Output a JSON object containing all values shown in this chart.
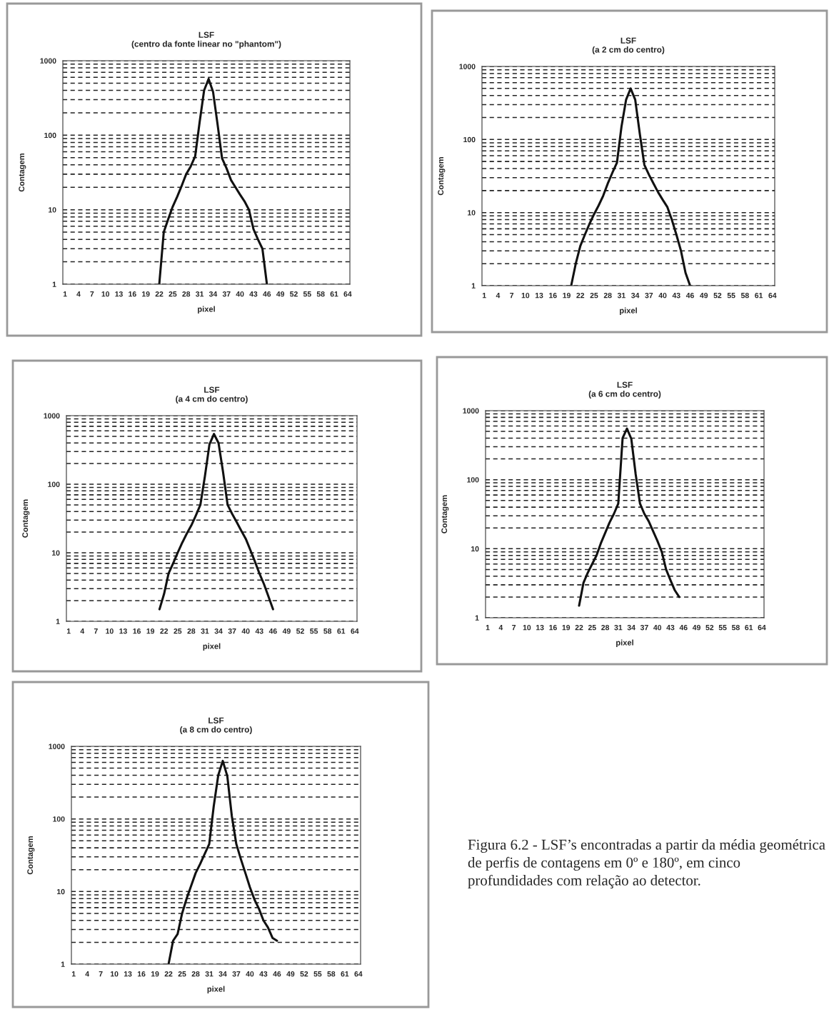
{
  "chart_data": [
    {
      "type": "line",
      "title": "LSF",
      "subtitle": "(centro da fonte linear no \"phantom\")",
      "xlabel": "pixel",
      "ylabel": "Contagem",
      "log": true,
      "grid": "y",
      "legend": false,
      "marker": "none",
      "line_style": "solid",
      "ylim": [
        1,
        1000
      ],
      "yticks": [
        1,
        10,
        100,
        1000
      ],
      "categories": [
        "1",
        null,
        null,
        "4",
        null,
        null,
        "7",
        null,
        null,
        "10",
        null,
        null,
        "13",
        null,
        null,
        "16",
        null,
        null,
        "19",
        null,
        null,
        "22",
        null,
        null,
        "25",
        null,
        null,
        "28",
        null,
        null,
        "31",
        null,
        null,
        "34",
        null,
        null,
        "37",
        null,
        null,
        "40",
        null,
        null,
        "43",
        null,
        null,
        "46",
        null,
        null,
        "49",
        null,
        null,
        "52",
        null,
        null,
        "55",
        null,
        null,
        "58",
        null,
        null,
        "61",
        null,
        null,
        "64"
      ],
      "series": [
        {
          "color": "#111111",
          "values": [
            null,
            null,
            null,
            null,
            null,
            null,
            null,
            null,
            null,
            null,
            null,
            null,
            null,
            null,
            null,
            null,
            null,
            null,
            null,
            null,
            null,
            1,
            5,
            7.5,
            11,
            15,
            21,
            30,
            38,
            52,
            150,
            400,
            570,
            380,
            140,
            49,
            36,
            25,
            20,
            16,
            13,
            10,
            5.5,
            4,
            3,
            1,
            null,
            null,
            null,
            null,
            null,
            null,
            null,
            null,
            null,
            null,
            null,
            null,
            null,
            null,
            null,
            null,
            null,
            null
          ]
        }
      ]
    },
    {
      "type": "line",
      "title": "LSF",
      "subtitle": "(a 2 cm do centro)",
      "xlabel": "pixel",
      "ylabel": "Contagem",
      "log": true,
      "grid": "y",
      "legend": false,
      "marker": "none",
      "line_style": "solid",
      "ylim": [
        1,
        1000
      ],
      "yticks": [
        1,
        10,
        100,
        1000
      ],
      "categories": [
        "1",
        null,
        null,
        "4",
        null,
        null,
        "7",
        null,
        null,
        "10",
        null,
        null,
        "13",
        null,
        null,
        "16",
        null,
        null,
        "19",
        null,
        null,
        "22",
        null,
        null,
        "25",
        null,
        null,
        "28",
        null,
        null,
        "31",
        null,
        null,
        "34",
        null,
        null,
        "37",
        null,
        null,
        "40",
        null,
        null,
        "43",
        null,
        null,
        "46",
        null,
        null,
        "49",
        null,
        null,
        "52",
        null,
        null,
        "55",
        null,
        null,
        "58",
        null,
        null,
        "61",
        null,
        null,
        "64"
      ],
      "series": [
        {
          "color": "#111111",
          "values": [
            null,
            null,
            null,
            null,
            null,
            null,
            null,
            null,
            null,
            null,
            null,
            null,
            null,
            null,
            null,
            null,
            null,
            null,
            null,
            1,
            2,
            3.5,
            5,
            7,
            9.5,
            12.5,
            17,
            25,
            35,
            48,
            150,
            350,
            500,
            350,
            120,
            45,
            33,
            25,
            19,
            15,
            12,
            8,
            5,
            3,
            1.5,
            1,
            null,
            null,
            null,
            null,
            null,
            null,
            null,
            null,
            null,
            null,
            null,
            null,
            null,
            null,
            null,
            null,
            null,
            null
          ]
        }
      ]
    },
    {
      "type": "line",
      "title": "LSF",
      "subtitle": "(a 4 cm do centro)",
      "xlabel": "pixel",
      "ylabel": "Contagem",
      "log": true,
      "grid": "y",
      "legend": false,
      "marker": "none",
      "line_style": "solid",
      "ylim": [
        1,
        1000
      ],
      "yticks": [
        1,
        10,
        100,
        1000
      ],
      "categories": [
        "1",
        null,
        null,
        "4",
        null,
        null,
        "7",
        null,
        null,
        "10",
        null,
        null,
        "13",
        null,
        null,
        "16",
        null,
        null,
        "19",
        null,
        null,
        "22",
        null,
        null,
        "25",
        null,
        null,
        "28",
        null,
        null,
        "31",
        null,
        null,
        "34",
        null,
        null,
        "37",
        null,
        null,
        "40",
        null,
        null,
        "43",
        null,
        null,
        "46",
        null,
        null,
        "49",
        null,
        null,
        "52",
        null,
        null,
        "55",
        null,
        null,
        "58",
        null,
        null,
        "61",
        null,
        null,
        "64"
      ],
      "series": [
        {
          "color": "#111111",
          "values": [
            null,
            null,
            null,
            null,
            null,
            null,
            null,
            null,
            null,
            null,
            null,
            null,
            null,
            null,
            null,
            null,
            null,
            null,
            null,
            null,
            1.5,
            2.5,
            5,
            7,
            10,
            14,
            19,
            25,
            35,
            50,
            130,
            380,
            540,
            400,
            150,
            50,
            37,
            28,
            21,
            16,
            11,
            7.5,
            5,
            3.5,
            2.3,
            1.5,
            null,
            null,
            null,
            null,
            null,
            null,
            null,
            null,
            null,
            null,
            null,
            null,
            null,
            null,
            null,
            null,
            null,
            null
          ]
        }
      ]
    },
    {
      "type": "line",
      "title": "LSF",
      "subtitle": "(a 6 cm do centro)",
      "xlabel": "pixel",
      "ylabel": "Contagem",
      "log": true,
      "grid": "y",
      "legend": false,
      "marker": "none",
      "line_style": "solid",
      "ylim": [
        1,
        1000
      ],
      "yticks": [
        1,
        10,
        100,
        1000
      ],
      "categories": [
        "1",
        null,
        null,
        "4",
        null,
        null,
        "7",
        null,
        null,
        "10",
        null,
        null,
        "13",
        null,
        null,
        "16",
        null,
        null,
        "19",
        null,
        null,
        "22",
        null,
        null,
        "25",
        null,
        null,
        "28",
        null,
        null,
        "31",
        null,
        null,
        "34",
        null,
        null,
        "37",
        null,
        null,
        "40",
        null,
        null,
        "43",
        null,
        null,
        "46",
        null,
        null,
        "49",
        null,
        null,
        "52",
        null,
        null,
        "55",
        null,
        null,
        "58",
        null,
        null,
        "61",
        null,
        null,
        "64"
      ],
      "series": [
        {
          "color": "#111111",
          "values": [
            null,
            null,
            null,
            null,
            null,
            null,
            null,
            null,
            null,
            null,
            null,
            null,
            null,
            null,
            null,
            null,
            null,
            null,
            null,
            null,
            null,
            1.5,
            3.2,
            4.5,
            6,
            8,
            12,
            17,
            24,
            32,
            45,
            400,
            550,
            390,
            120,
            45,
            32,
            25,
            18,
            13,
            9,
            5,
            3.5,
            2.5,
            2,
            null,
            null,
            null,
            null,
            null,
            null,
            null,
            null,
            null,
            null,
            null,
            null,
            null,
            null,
            null,
            null,
            null,
            null,
            null
          ]
        }
      ]
    },
    {
      "type": "line",
      "title": "LSF",
      "subtitle": "(a 8 cm do centro)",
      "xlabel": "pixel",
      "ylabel": "Contagem",
      "log": true,
      "grid": "y",
      "legend": false,
      "marker": "none",
      "line_style": "solid",
      "ylim": [
        1,
        1000
      ],
      "yticks": [
        1,
        10,
        100,
        1000
      ],
      "categories": [
        "1",
        null,
        null,
        "4",
        null,
        null,
        "7",
        null,
        null,
        "10",
        null,
        null,
        "13",
        null,
        null,
        "16",
        null,
        null,
        "19",
        null,
        null,
        "22",
        null,
        null,
        "25",
        null,
        null,
        "28",
        null,
        null,
        "31",
        null,
        null,
        "34",
        null,
        null,
        "37",
        null,
        null,
        "40",
        null,
        null,
        "43",
        null,
        null,
        "46",
        null,
        null,
        "49",
        null,
        null,
        "52",
        null,
        null,
        "55",
        null,
        null,
        "58",
        null,
        null,
        "61",
        null,
        null,
        "64"
      ],
      "series": [
        {
          "color": "#111111",
          "values": [
            null,
            null,
            null,
            null,
            null,
            null,
            null,
            null,
            null,
            null,
            null,
            null,
            null,
            null,
            null,
            null,
            null,
            null,
            null,
            null,
            null,
            1,
            2.1,
            2.6,
            5,
            8,
            12,
            18,
            24,
            33,
            45,
            150,
            400,
            630,
            390,
            110,
            45,
            28,
            18,
            11.5,
            7.8,
            5.8,
            4,
            3.2,
            2.3,
            2.1,
            null,
            null,
            null,
            null,
            null,
            null,
            null,
            null,
            null,
            null,
            null,
            null,
            null,
            null,
            null,
            null,
            null,
            null
          ]
        }
      ]
    },
    {
      "type": "other",
      "annotations": [
        "Figura 6.2 - LSF’s encontradas a partir da média geométrica de perfis de contagens em 0º e 180º, em cinco profundidades com relação ao detector."
      ]
    }
  ]
}
